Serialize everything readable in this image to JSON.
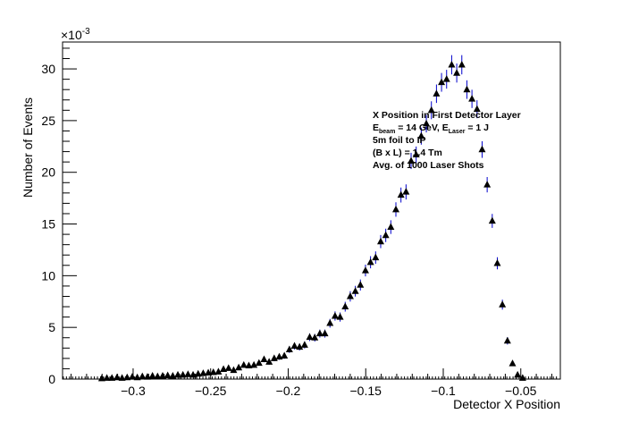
{
  "chart_data": {
    "type": "scatter",
    "title": "",
    "xlabel": "Detector X Position",
    "ylabel": "Number of Events",
    "y_multiplier": "×10",
    "y_multiplier_exp": "-3",
    "xlim": [
      -0.3455,
      -0.0245
    ],
    "ylim": [
      0,
      32.6
    ],
    "x_ticks": [
      -0.3,
      -0.25,
      -0.2,
      -0.15,
      -0.1,
      -0.05
    ],
    "x_tick_labels": [
      "−0.3",
      "−0.25",
      "−0.2",
      "−0.15",
      "−0.1",
      "−0.05"
    ],
    "y_ticks": [
      0,
      5,
      10,
      15,
      20,
      25,
      30
    ],
    "y_tick_labels": [
      "0",
      "5",
      "10",
      "15",
      "20",
      "25",
      "30"
    ],
    "grid": false,
    "marker": "triangle-up",
    "marker_color": "#000000",
    "error_color": "#0000cc",
    "x_start": -0.3202,
    "x_step": 0.00327,
    "values": [
      0.05,
      0.1,
      0.1,
      0.15,
      0.1,
      0.15,
      0.2,
      0.15,
      0.25,
      0.2,
      0.3,
      0.25,
      0.3,
      0.35,
      0.3,
      0.4,
      0.4,
      0.45,
      0.4,
      0.5,
      0.55,
      0.6,
      0.65,
      0.7,
      0.95,
      1.05,
      0.85,
      1.1,
      1.35,
      1.3,
      1.35,
      1.55,
      1.9,
      1.65,
      2.0,
      2.15,
      2.25,
      2.85,
      3.2,
      3.1,
      3.3,
      4.05,
      4.0,
      4.4,
      4.4,
      5.4,
      6.1,
      6.0,
      7.0,
      8.0,
      8.5,
      9.1,
      10.5,
      11.3,
      11.75,
      13.3,
      13.9,
      14.7,
      16.4,
      17.8,
      18.1,
      21.1,
      21.7,
      23.5,
      24.7,
      26.0,
      27.6,
      28.7,
      29.0,
      30.4,
      29.6,
      30.4,
      28.0,
      27.1,
      26.1,
      22.2,
      18.8,
      15.3,
      11.2,
      7.2,
      3.7,
      1.5,
      0.4,
      0.1
    ],
    "annotation": {
      "line1": "X Position in First Detector Layer",
      "line2_a": "E",
      "line2_a_sub": "beam",
      "line2_b": " = 14 GeV, E",
      "line2_b_sub": "Laser",
      "line2_c": " = 1 J",
      "line3": "5m foil to IP",
      "line4": "(B x L) = 1.4 Tm",
      "line5": "Avg. of 1000 Laser Shots"
    }
  }
}
